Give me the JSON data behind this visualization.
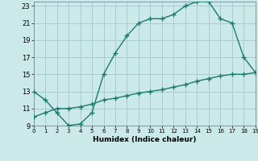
{
  "xlabel": "Humidex (Indice chaleur)",
  "line1_x": [
    0,
    1,
    2,
    3,
    4,
    5,
    6,
    7,
    8,
    9,
    10,
    11,
    12,
    13,
    14,
    15,
    16,
    17,
    18,
    19
  ],
  "line1_y": [
    13,
    12,
    10.5,
    9,
    9.2,
    10.5,
    15,
    17.5,
    19.5,
    21,
    21.5,
    21.5,
    22,
    23,
    23.5,
    23.5,
    21.5,
    21,
    17,
    15.2
  ],
  "line2_x": [
    0,
    1,
    2,
    3,
    4,
    5,
    6,
    7,
    8,
    9,
    10,
    11,
    12,
    13,
    14,
    15,
    16,
    17,
    18,
    19
  ],
  "line2_y": [
    10,
    10.5,
    11,
    11,
    11.2,
    11.5,
    12,
    12.2,
    12.5,
    12.8,
    13,
    13.2,
    13.5,
    13.8,
    14.2,
    14.5,
    14.8,
    15,
    15,
    15.2
  ],
  "line_color": "#1a7a6e",
  "bg_color": "#cce9e9",
  "grid_major_color": "#aacccc",
  "grid_minor_color": "#bbdddd",
  "xlim": [
    0,
    19
  ],
  "ylim": [
    9,
    23.5
  ],
  "yticks": [
    9,
    11,
    13,
    15,
    17,
    19,
    21,
    23
  ],
  "xticks": [
    0,
    1,
    2,
    3,
    4,
    5,
    6,
    7,
    8,
    9,
    10,
    11,
    12,
    13,
    14,
    15,
    16,
    17,
    18,
    19
  ],
  "marker": "+",
  "marker_size": 5,
  "line_width": 1.0
}
